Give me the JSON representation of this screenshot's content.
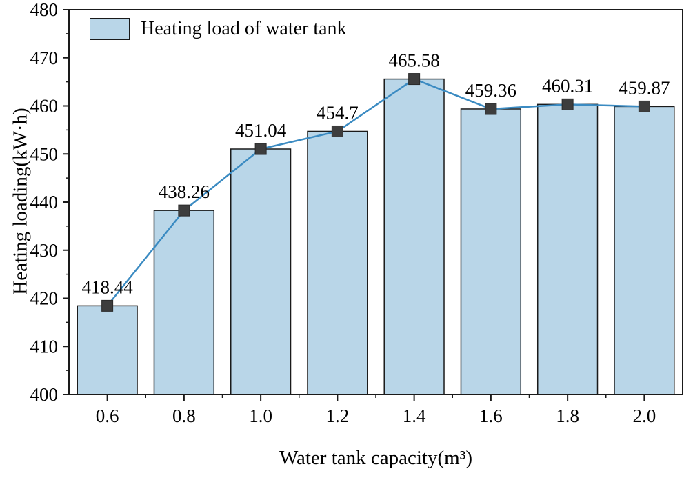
{
  "chart_data": {
    "type": "bar",
    "overlay": "line",
    "title": "",
    "legend": "Heating load of water tank",
    "legend_position": "top-left",
    "xlabel": "Water tank capacity(m³)",
    "ylabel": "Heating loading(kW·h)",
    "categories": [
      "0.6",
      "0.8",
      "1.0",
      "1.2",
      "1.4",
      "1.6",
      "1.8",
      "2.0"
    ],
    "values": [
      418.44,
      438.26,
      451.04,
      454.7,
      465.58,
      459.36,
      460.31,
      459.87
    ],
    "value_labels": [
      "418.44",
      "438.26",
      "451.04",
      "454.7",
      "465.58",
      "459.36",
      "460.31",
      "459.87"
    ],
    "ylim": [
      400,
      480
    ],
    "yticks": [
      400,
      410,
      420,
      430,
      440,
      450,
      460,
      470,
      480
    ],
    "ytick_minor_step": 5,
    "grid": false,
    "colors": {
      "bar_fill": "#b9d6e8",
      "bar_stroke": "#1a1a1a",
      "line": "#3b8bc2",
      "marker": "#3d3d3d",
      "text": "#000000",
      "background": "#ffffff"
    }
  }
}
